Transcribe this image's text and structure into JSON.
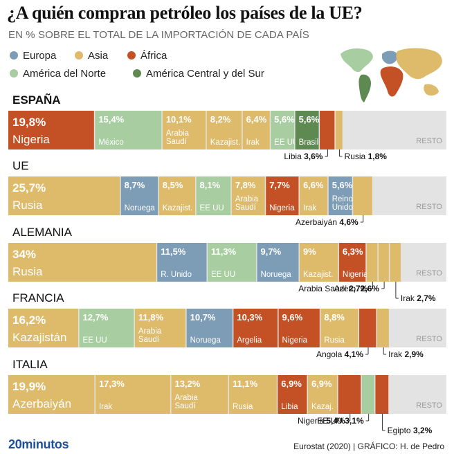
{
  "title": "¿A quién compran petróleo los países de la UE?",
  "subtitle": "EN % SOBRE EL TOTAL DE LA IMPORTACIÓN DE CADA PAÍS",
  "colors": {
    "Europa": "#7c9db5",
    "Asia": "#deba6b",
    "África": "#c45126",
    "América del Norte": "#a8cda1",
    "América Central y del Sur": "#5e8a52",
    "Resto": "#e3e3e3"
  },
  "legend": [
    {
      "name": "Europa",
      "color": "#7c9db5"
    },
    {
      "name": "Asia",
      "color": "#deba6b"
    },
    {
      "name": "África",
      "color": "#c45126"
    },
    {
      "name": "América del Norte",
      "color": "#a8cda1"
    },
    {
      "name": "América Central y del Sur",
      "color": "#5e8a52"
    }
  ],
  "resto_label": "RESTO",
  "chart_data": {
    "type": "bar",
    "orientation": "horizontal-stacked",
    "unit": "%",
    "xlim": [
      0,
      100
    ],
    "countries": [
      {
        "name": "ESPAÑA",
        "segments": [
          {
            "value": 19.8,
            "label": "19,8%",
            "source": "Nigeria",
            "region": "África"
          },
          {
            "value": 15.4,
            "label": "15,4%",
            "source": "México",
            "region": "América del Norte"
          },
          {
            "value": 10.1,
            "label": "10,1%",
            "source": "Arabia Saudí",
            "region": "Asia"
          },
          {
            "value": 8.2,
            "label": "8,2%",
            "source": "Kazajist.",
            "region": "Asia"
          },
          {
            "value": 6.4,
            "label": "6,4%",
            "source": "Irak",
            "region": "Asia"
          },
          {
            "value": 5.6,
            "label": "5,6%",
            "source": "EE UU",
            "region": "América del Norte"
          },
          {
            "value": 5.6,
            "label": "5,6%",
            "source": "Brasil",
            "region": "América Central y del Sur"
          },
          {
            "value": 3.6,
            "label": "3,6%",
            "source": "Libia",
            "region": "África",
            "callout": true
          },
          {
            "value": 1.8,
            "label": "1,8%",
            "source": "Rusia",
            "region": "Asia",
            "callout": true
          }
        ]
      },
      {
        "name": "UE",
        "segments": [
          {
            "value": 25.7,
            "label": "25,7%",
            "source": "Rusia",
            "region": "Asia"
          },
          {
            "value": 8.7,
            "label": "8,7%",
            "source": "Noruega",
            "region": "Europa"
          },
          {
            "value": 8.5,
            "label": "8,5%",
            "source": "Kazajist.",
            "region": "Asia"
          },
          {
            "value": 8.1,
            "label": "8,1%",
            "source": "EE UU",
            "region": "América del Norte"
          },
          {
            "value": 7.8,
            "label": "7,8%",
            "source": "Arabia Saudí",
            "region": "Asia"
          },
          {
            "value": 7.7,
            "label": "7,7%",
            "source": "Nigeria",
            "region": "África"
          },
          {
            "value": 6.6,
            "label": "6,6%",
            "source": "Irak",
            "region": "Asia"
          },
          {
            "value": 5.6,
            "label": "5,6%",
            "source": "Reino Unido",
            "region": "Europa"
          },
          {
            "value": 4.6,
            "label": "4,6%",
            "source": "Azerbaiyán",
            "region": "Asia",
            "callout": true
          }
        ]
      },
      {
        "name": "ALEMANIA",
        "segments": [
          {
            "value": 34,
            "label": "34%",
            "source": "Rusia",
            "region": "Asia"
          },
          {
            "value": 11.5,
            "label": "11,5%",
            "source": "R. Unido",
            "region": "Europa"
          },
          {
            "value": 11.3,
            "label": "11,3%",
            "source": "EE UU",
            "region": "América del Norte"
          },
          {
            "value": 9.7,
            "label": "9,7%",
            "source": "Noruega",
            "region": "Europa"
          },
          {
            "value": 9,
            "label": "9%",
            "source": "Kazajist.",
            "region": "Asia"
          },
          {
            "value": 6.3,
            "label": "6,3%",
            "source": "Nigeria",
            "region": "África"
          },
          {
            "value": 2.7,
            "label": "2,7%",
            "source": "Arabia Saudí",
            "region": "Asia",
            "callout": true
          },
          {
            "value": 2.6,
            "label": "2,6%",
            "source": "Azerb.",
            "region": "Asia",
            "callout": true
          },
          {
            "value": 2.7,
            "label": "2,7%",
            "source": "Irak",
            "region": "Asia",
            "callout": true
          }
        ]
      },
      {
        "name": "FRANCIA",
        "segments": [
          {
            "value": 16.2,
            "label": "16,2%",
            "source": "Kazajistán",
            "region": "Asia"
          },
          {
            "value": 12.7,
            "label": "12,7%",
            "source": "EE UU",
            "region": "América del Norte"
          },
          {
            "value": 11.8,
            "label": "11,8%",
            "source": "Arabia Saudí",
            "region": "Asia"
          },
          {
            "value": 10.7,
            "label": "10,7%",
            "source": "Noruega",
            "region": "Europa"
          },
          {
            "value": 10.3,
            "label": "10,3%",
            "source": "Argelia",
            "region": "África"
          },
          {
            "value": 9.6,
            "label": "9,6%",
            "source": "Nigeria",
            "region": "África"
          },
          {
            "value": 8.8,
            "label": "8,8%",
            "source": "Rusia",
            "region": "Asia"
          },
          {
            "value": 4.1,
            "label": "4,1%",
            "source": "Angola",
            "region": "África",
            "callout": true
          },
          {
            "value": 2.9,
            "label": "2,9%",
            "source": "Irak",
            "region": "Asia",
            "callout": true
          }
        ]
      },
      {
        "name": "ITALIA",
        "segments": [
          {
            "value": 19.9,
            "label": "19,9%",
            "source": "Azerbaiyán",
            "region": "Asia"
          },
          {
            "value": 17.3,
            "label": "17,3%",
            "source": "Irak",
            "region": "Asia"
          },
          {
            "value": 13.2,
            "label": "13,2%",
            "source": "Arabia Saudí",
            "region": "Asia"
          },
          {
            "value": 11.1,
            "label": "11,1%",
            "source": "Rusia",
            "region": "Asia"
          },
          {
            "value": 6.9,
            "label": "6,9%",
            "source": "Libia",
            "region": "África"
          },
          {
            "value": 6.9,
            "label": "6,9%",
            "source": "Kazaj.",
            "region": "Asia"
          },
          {
            "value": 5.4,
            "label": "5,4%",
            "source": "Nigeria",
            "region": "África",
            "callout": true
          },
          {
            "value": 3.1,
            "label": "3,1%",
            "source": "EE UU",
            "region": "América del Norte",
            "callout": true
          },
          {
            "value": 3.2,
            "label": "3,2%",
            "source": "Egipto",
            "region": "África",
            "callout": true
          }
        ]
      }
    ]
  },
  "footer": {
    "logo": "20minutos",
    "credit": "Eurostat (2020)  |  GRÁFICO: H. de Pedro"
  }
}
